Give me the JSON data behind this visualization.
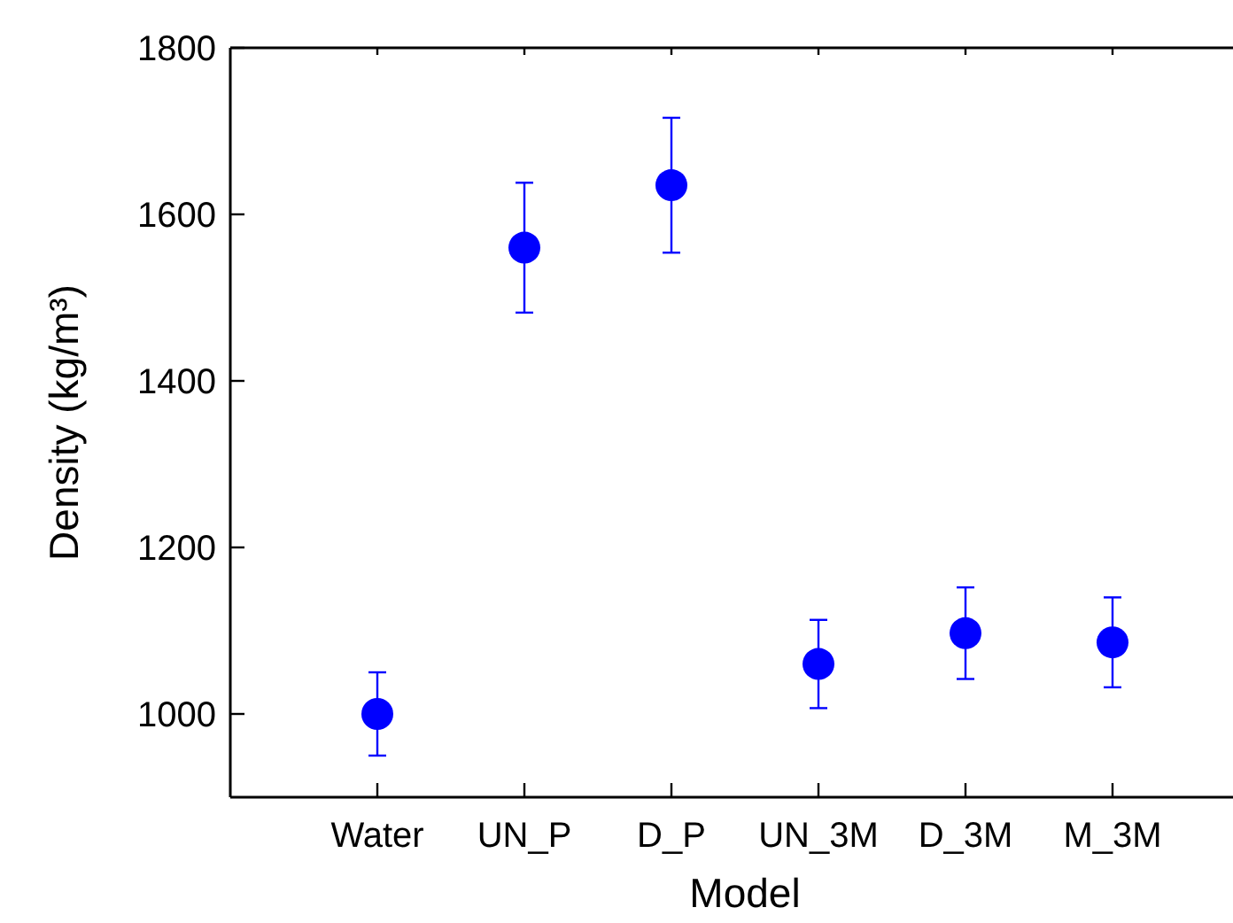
{
  "chart_data": {
    "type": "scatter",
    "xlabel": "Model",
    "ylabel": "Density (kg/m³)",
    "categories": [
      "Water",
      "UN_P",
      "D_P",
      "UN_3M",
      "D_3M",
      "M_3M"
    ],
    "series": [
      {
        "color": "#0000ff",
        "values": [
          1000,
          1560,
          1635,
          1060,
          1097,
          1086
        ],
        "errors": [
          50,
          78,
          81,
          53,
          55,
          54
        ]
      }
    ],
    "ylim": [
      900,
      1800
    ],
    "yticks": [
      1000,
      1200,
      1400,
      1600,
      1800
    ],
    "grid": false,
    "marker": "circle"
  }
}
